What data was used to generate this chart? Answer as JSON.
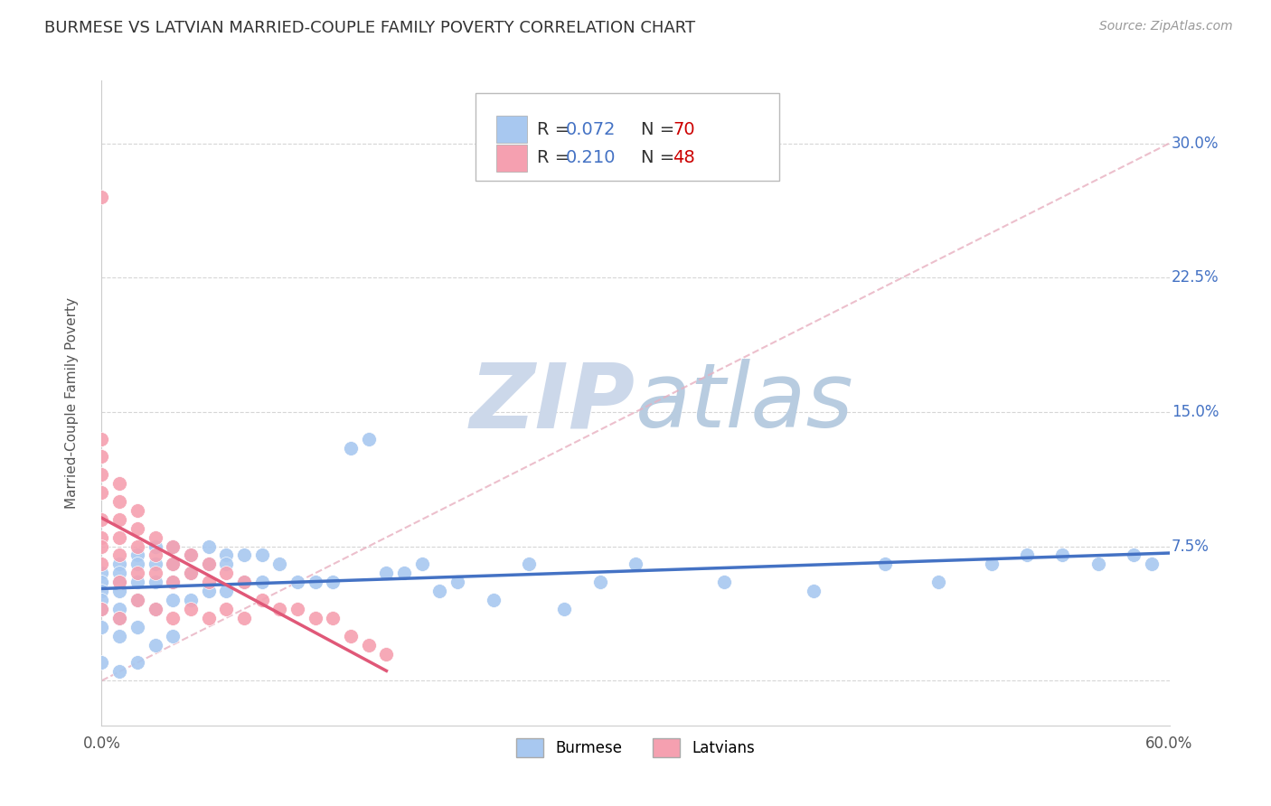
{
  "title": "BURMESE VS LATVIAN MARRIED-COUPLE FAMILY POVERTY CORRELATION CHART",
  "source": "Source: ZipAtlas.com",
  "ylabel": "Married-Couple Family Poverty",
  "xlim": [
    0.0,
    0.6
  ],
  "ylim": [
    -0.025,
    0.335
  ],
  "ytick_positions": [
    0.0,
    0.075,
    0.15,
    0.225,
    0.3
  ],
  "ytick_labels": [
    "",
    "7.5%",
    "15.0%",
    "22.5%",
    "30.0%"
  ],
  "burmese_R": 0.072,
  "burmese_N": 70,
  "latvian_R": 0.21,
  "latvian_N": 48,
  "burmese_color": "#a8c8f0",
  "latvian_color": "#f5a0b0",
  "burmese_line_color": "#4472c4",
  "latvian_line_color": "#e05878",
  "diagonal_line_color": "#e8b0c0",
  "background_color": "#ffffff",
  "watermark_zip_color": "#ccd8ea",
  "watermark_atlas_color": "#b8cce0",
  "legend_R_color": "#4472c4",
  "legend_N_color": "#cc0000",
  "ytick_color": "#4472c4",
  "burmese_x": [
    0.0,
    0.0,
    0.0,
    0.0,
    0.0,
    0.0,
    0.0,
    0.01,
    0.01,
    0.01,
    0.01,
    0.01,
    0.01,
    0.01,
    0.01,
    0.02,
    0.02,
    0.02,
    0.02,
    0.02,
    0.02,
    0.03,
    0.03,
    0.03,
    0.03,
    0.03,
    0.04,
    0.04,
    0.04,
    0.04,
    0.04,
    0.05,
    0.05,
    0.05,
    0.06,
    0.06,
    0.06,
    0.07,
    0.07,
    0.07,
    0.08,
    0.08,
    0.09,
    0.09,
    0.1,
    0.11,
    0.12,
    0.13,
    0.14,
    0.15,
    0.16,
    0.17,
    0.18,
    0.19,
    0.2,
    0.22,
    0.24,
    0.26,
    0.28,
    0.3,
    0.35,
    0.4,
    0.44,
    0.47,
    0.5,
    0.52,
    0.54,
    0.56,
    0.58,
    0.59
  ],
  "burmese_y": [
    0.06,
    0.055,
    0.05,
    0.045,
    0.04,
    0.03,
    0.01,
    0.065,
    0.06,
    0.055,
    0.05,
    0.04,
    0.035,
    0.025,
    0.005,
    0.07,
    0.065,
    0.055,
    0.045,
    0.03,
    0.01,
    0.075,
    0.065,
    0.055,
    0.04,
    0.02,
    0.075,
    0.065,
    0.055,
    0.045,
    0.025,
    0.07,
    0.06,
    0.045,
    0.075,
    0.065,
    0.05,
    0.07,
    0.065,
    0.05,
    0.07,
    0.055,
    0.07,
    0.055,
    0.065,
    0.055,
    0.055,
    0.055,
    0.13,
    0.135,
    0.06,
    0.06,
    0.065,
    0.05,
    0.055,
    0.045,
    0.065,
    0.04,
    0.055,
    0.065,
    0.055,
    0.05,
    0.065,
    0.055,
    0.065,
    0.07,
    0.07,
    0.065,
    0.07,
    0.065
  ],
  "latvian_x": [
    0.0,
    0.0,
    0.0,
    0.0,
    0.0,
    0.0,
    0.0,
    0.0,
    0.0,
    0.0,
    0.01,
    0.01,
    0.01,
    0.01,
    0.01,
    0.01,
    0.01,
    0.02,
    0.02,
    0.02,
    0.02,
    0.02,
    0.03,
    0.03,
    0.03,
    0.03,
    0.04,
    0.04,
    0.04,
    0.04,
    0.05,
    0.05,
    0.05,
    0.06,
    0.06,
    0.06,
    0.07,
    0.07,
    0.08,
    0.08,
    0.09,
    0.1,
    0.11,
    0.12,
    0.13,
    0.14,
    0.15,
    0.16
  ],
  "latvian_y": [
    0.27,
    0.135,
    0.125,
    0.115,
    0.105,
    0.09,
    0.08,
    0.075,
    0.065,
    0.04,
    0.11,
    0.1,
    0.09,
    0.08,
    0.07,
    0.055,
    0.035,
    0.095,
    0.085,
    0.075,
    0.06,
    0.045,
    0.08,
    0.07,
    0.06,
    0.04,
    0.075,
    0.065,
    0.055,
    0.035,
    0.07,
    0.06,
    0.04,
    0.065,
    0.055,
    0.035,
    0.06,
    0.04,
    0.055,
    0.035,
    0.045,
    0.04,
    0.04,
    0.035,
    0.035,
    0.025,
    0.02,
    0.015
  ]
}
